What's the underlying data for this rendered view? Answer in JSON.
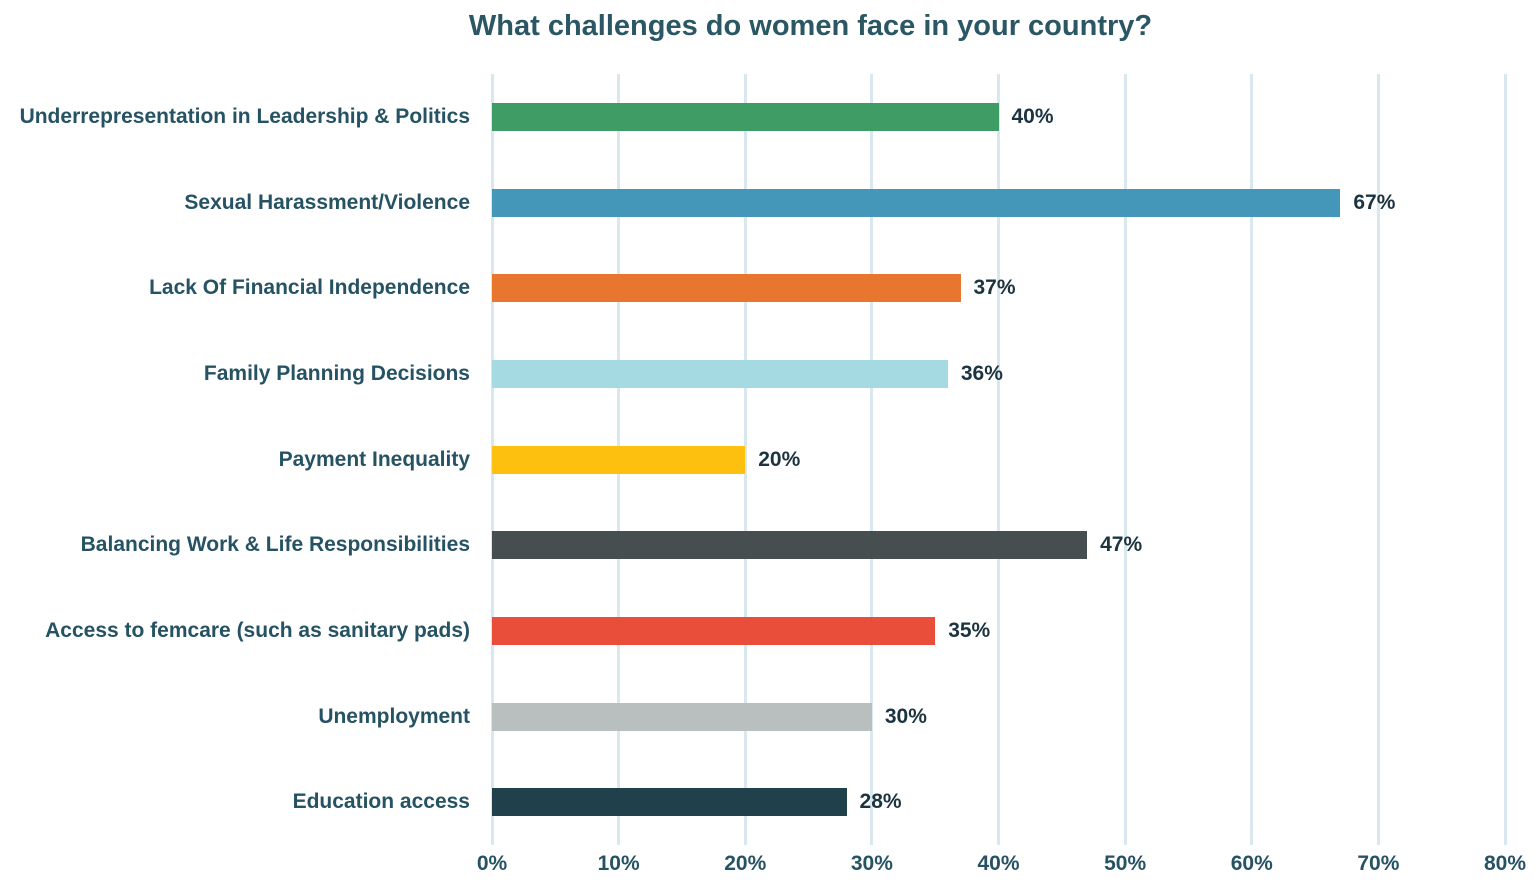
{
  "chart_data": {
    "type": "bar",
    "orientation": "horizontal",
    "title": "What challenges do women face in your country?",
    "categories": [
      "Underrepresentation in Leadership & Politics",
      "Sexual Harassment/Violence",
      "Lack Of Financial Independence",
      "Family Planning Decisions",
      "Payment Inequality",
      "Balancing Work & Life Responsibilities",
      "Access to femcare (such as sanitary pads)",
      "Unemployment",
      "Education access"
    ],
    "values": [
      40,
      67,
      37,
      36,
      20,
      47,
      35,
      30,
      28
    ],
    "value_labels": [
      "40%",
      "67%",
      "37%",
      "36%",
      "20%",
      "47%",
      "35%",
      "30%",
      "28%"
    ],
    "bar_colors": [
      "#3F9C64",
      "#4597B9",
      "#E8762F",
      "#A5DAE3",
      "#FEC00F",
      "#474E50",
      "#E94E3B",
      "#B9BFBF",
      "#20404C"
    ],
    "xlabel": "",
    "ylabel": "",
    "xlim": [
      0,
      80
    ],
    "x_tick_labels": [
      "0%",
      "10%",
      "20%",
      "30%",
      "40%",
      "50%",
      "60%",
      "70%",
      "80%"
    ],
    "grid": "vertical-gridlines-only",
    "legend": "none",
    "styles": {
      "background": "#FFFFFF",
      "title_color": "#2B5765",
      "category_label_color": "#265363",
      "value_label_color": "#1C3340",
      "tick_label_color": "#265363",
      "gridline_color": "#D9E7EE"
    }
  }
}
